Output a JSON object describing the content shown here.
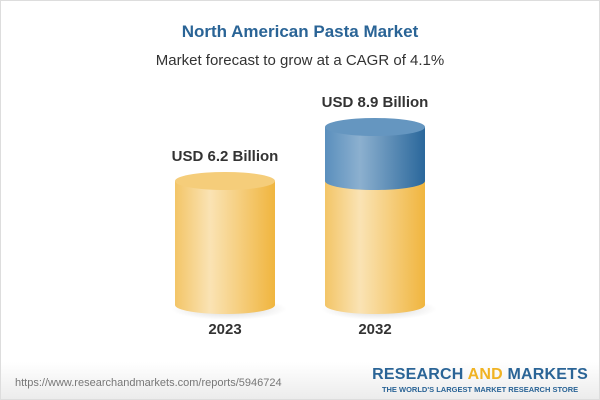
{
  "title": "North American Pasta Market",
  "subtitle": "Market forecast to grow at a CAGR of 4.1%",
  "chart_data": {
    "type": "bar",
    "style": "3d-cylinder",
    "categories": [
      "2023",
      "2032"
    ],
    "values": [
      6.2,
      8.9
    ],
    "data_labels": [
      "USD 6.2 Billion",
      "USD 8.9 Billion"
    ],
    "unit": "USD Billion",
    "cagr": "4.1%",
    "colors": {
      "base": "#f3c460",
      "growth": "#4f86b4"
    }
  },
  "footer": {
    "url": "https://www.researchandmarkets.com/reports/5946724",
    "logo_part1": "RESEARCH ",
    "logo_part2": "AND",
    "logo_part3": " MARKETS",
    "tagline": "THE WORLD'S LARGEST MARKET RESEARCH STORE"
  }
}
